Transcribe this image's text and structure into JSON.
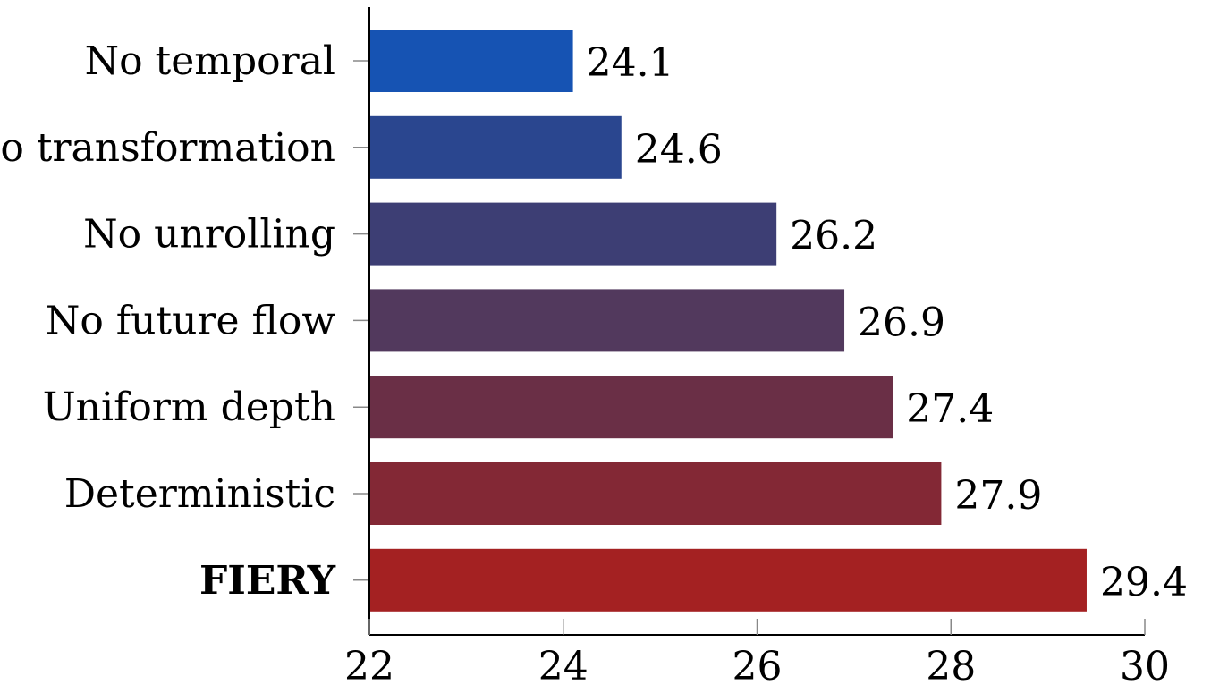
{
  "chart_data": {
    "type": "bar",
    "orientation": "horizontal",
    "title": "",
    "xlabel": "",
    "ylabel": "",
    "xlim": [
      22,
      30
    ],
    "x_ticks": [
      22,
      24,
      26,
      28,
      30
    ],
    "grid": false,
    "categories": [
      "No temporal",
      "No transformation",
      "No unrolling",
      "No future flow",
      "Uniform depth",
      "Deterministic",
      "FIERY"
    ],
    "values": [
      24.1,
      24.6,
      26.2,
      26.9,
      27.4,
      27.9,
      29.4
    ],
    "value_labels": [
      "24.1",
      "24.6",
      "26.2",
      "26.9",
      "27.4",
      "27.9",
      "29.4"
    ],
    "bold_categories": [
      "FIERY"
    ],
    "colors": [
      "#1653b3",
      "#2a468f",
      "#3d3e74",
      "#52395d",
      "#6a2f46",
      "#832835",
      "#a42122"
    ]
  }
}
